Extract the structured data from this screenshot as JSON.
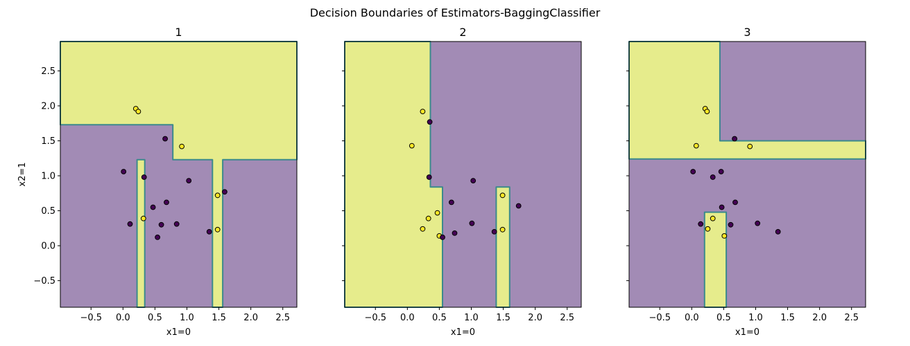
{
  "figure": {
    "suptitle": "Decision Boundaries of Estimators-BaggingClassifier"
  },
  "colors": {
    "class0_region": "#a28bb5",
    "class1_region": "#e6ec8c",
    "boundary_line": "#3b8a8c",
    "class0_point": "#440154",
    "class1_point": "#fde725",
    "point_edge": "#000000"
  },
  "chart_data": [
    {
      "type": "scatter",
      "title": "1",
      "xlabel": "x1=0",
      "ylabel": "x2=1",
      "xlim": [
        -0.98,
        2.72
      ],
      "ylim": [
        -0.88,
        2.92
      ],
      "xticks": [
        -0.5,
        0.0,
        0.5,
        1.0,
        1.5,
        2.0,
        2.5
      ],
      "xtick_labels": [
        "−0.5",
        "0.0",
        "0.5",
        "1.0",
        "1.5",
        "2.0",
        "2.5"
      ],
      "yticks": [
        -0.5,
        0.0,
        0.5,
        1.0,
        1.5,
        2.0,
        2.5
      ],
      "ytick_labels": [
        "−0.5",
        "0.0",
        "0.5",
        "1.0",
        "1.5",
        "2.0",
        "2.5"
      ],
      "show_ytick_labels": true,
      "background_class": 0,
      "regions": [
        {
          "class": 1,
          "polygon": [
            [
              -0.98,
              1.73
            ],
            [
              0.78,
              1.73
            ],
            [
              0.78,
              1.23
            ],
            [
              1.4,
              1.23
            ],
            [
              1.4,
              -0.88
            ],
            [
              1.56,
              -0.88
            ],
            [
              1.56,
              1.23
            ],
            [
              2.72,
              1.23
            ],
            [
              2.72,
              2.92
            ],
            [
              -0.98,
              2.92
            ]
          ]
        },
        {
          "class": 1,
          "polygon": [
            [
              0.22,
              -0.88
            ],
            [
              0.34,
              -0.88
            ],
            [
              0.34,
              1.23
            ],
            [
              0.22,
              1.23
            ]
          ]
        }
      ],
      "points": [
        {
          "x": 0.2,
          "y": 1.96,
          "class": 1
        },
        {
          "x": 0.24,
          "y": 1.92,
          "class": 1
        },
        {
          "x": 0.92,
          "y": 1.42,
          "class": 1
        },
        {
          "x": 0.32,
          "y": 0.39,
          "class": 1
        },
        {
          "x": 1.48,
          "y": 0.72,
          "class": 1
        },
        {
          "x": 1.48,
          "y": 0.23,
          "class": 1
        },
        {
          "x": 0.66,
          "y": 1.53,
          "class": 0
        },
        {
          "x": 0.01,
          "y": 1.06,
          "class": 0
        },
        {
          "x": 0.33,
          "y": 0.98,
          "class": 0
        },
        {
          "x": 1.03,
          "y": 0.93,
          "class": 0
        },
        {
          "x": 1.59,
          "y": 0.77,
          "class": 0
        },
        {
          "x": 0.68,
          "y": 0.62,
          "class": 0
        },
        {
          "x": 0.47,
          "y": 0.55,
          "class": 0
        },
        {
          "x": 0.11,
          "y": 0.31,
          "class": 0
        },
        {
          "x": 0.6,
          "y": 0.3,
          "class": 0
        },
        {
          "x": 0.84,
          "y": 0.31,
          "class": 0
        },
        {
          "x": 1.35,
          "y": 0.2,
          "class": 0
        },
        {
          "x": 0.54,
          "y": 0.12,
          "class": 0
        }
      ]
    },
    {
      "type": "scatter",
      "title": "2",
      "xlabel": "x1=0",
      "ylabel": "",
      "xlim": [
        -0.98,
        2.72
      ],
      "ylim": [
        -0.88,
        2.92
      ],
      "xticks": [
        -0.5,
        0.0,
        0.5,
        1.0,
        1.5,
        2.0,
        2.5
      ],
      "xtick_labels": [
        "−0.5",
        "0.0",
        "0.5",
        "1.0",
        "1.5",
        "2.0",
        "2.5"
      ],
      "yticks": [
        -0.5,
        0.0,
        0.5,
        1.0,
        1.5,
        2.0,
        2.5
      ],
      "ytick_labels": [
        "−0.5",
        "0.0",
        "0.5",
        "1.0",
        "1.5",
        "2.0",
        "2.5"
      ],
      "show_ytick_labels": false,
      "background_class": 0,
      "regions": [
        {
          "class": 1,
          "polygon": [
            [
              -0.98,
              -0.88
            ],
            [
              0.55,
              -0.88
            ],
            [
              0.55,
              0.84
            ],
            [
              0.36,
              0.84
            ],
            [
              0.36,
              2.92
            ],
            [
              -0.98,
              2.92
            ]
          ]
        },
        {
          "class": 1,
          "polygon": [
            [
              1.39,
              -0.88
            ],
            [
              1.6,
              -0.88
            ],
            [
              1.6,
              0.84
            ],
            [
              1.39,
              0.84
            ]
          ]
        }
      ],
      "points": [
        {
          "x": 0.24,
          "y": 1.92,
          "class": 1
        },
        {
          "x": 0.07,
          "y": 1.43,
          "class": 1
        },
        {
          "x": 0.47,
          "y": 0.47,
          "class": 1
        },
        {
          "x": 0.33,
          "y": 0.39,
          "class": 1
        },
        {
          "x": 0.24,
          "y": 0.24,
          "class": 1
        },
        {
          "x": 0.5,
          "y": 0.14,
          "class": 1
        },
        {
          "x": 1.49,
          "y": 0.72,
          "class": 1
        },
        {
          "x": 1.49,
          "y": 0.23,
          "class": 1
        },
        {
          "x": 0.35,
          "y": 1.77,
          "class": 0
        },
        {
          "x": 0.34,
          "y": 0.98,
          "class": 0
        },
        {
          "x": 1.03,
          "y": 0.93,
          "class": 0
        },
        {
          "x": 0.69,
          "y": 0.62,
          "class": 0
        },
        {
          "x": 1.74,
          "y": 0.57,
          "class": 0
        },
        {
          "x": 1.01,
          "y": 0.32,
          "class": 0
        },
        {
          "x": 0.74,
          "y": 0.18,
          "class": 0
        },
        {
          "x": 1.36,
          "y": 0.2,
          "class": 0
        },
        {
          "x": 0.55,
          "y": 0.12,
          "class": 0
        }
      ]
    },
    {
      "type": "scatter",
      "title": "3",
      "xlabel": "x1=0",
      "ylabel": "",
      "xlim": [
        -0.98,
        2.72
      ],
      "ylim": [
        -0.88,
        2.92
      ],
      "xticks": [
        -0.5,
        0.0,
        0.5,
        1.0,
        1.5,
        2.0,
        2.5
      ],
      "xtick_labels": [
        "−0.5",
        "0.0",
        "0.5",
        "1.0",
        "1.5",
        "2.0",
        "2.5"
      ],
      "yticks": [
        -0.5,
        0.0,
        0.5,
        1.0,
        1.5,
        2.0,
        2.5
      ],
      "ytick_labels": [
        "−0.5",
        "0.0",
        "0.5",
        "1.0",
        "1.5",
        "2.0",
        "2.5"
      ],
      "show_ytick_labels": false,
      "background_class": 0,
      "regions": [
        {
          "class": 1,
          "polygon": [
            [
              -0.98,
              1.24
            ],
            [
              2.72,
              1.24
            ],
            [
              2.72,
              1.5
            ],
            [
              0.44,
              1.5
            ],
            [
              0.44,
              2.92
            ],
            [
              -0.98,
              2.92
            ]
          ]
        },
        {
          "class": 1,
          "polygon": [
            [
              0.2,
              -0.88
            ],
            [
              0.54,
              -0.88
            ],
            [
              0.54,
              0.48
            ],
            [
              0.2,
              0.48
            ]
          ]
        }
      ],
      "points": [
        {
          "x": 0.21,
          "y": 1.96,
          "class": 1
        },
        {
          "x": 0.24,
          "y": 1.92,
          "class": 1
        },
        {
          "x": 0.07,
          "y": 1.43,
          "class": 1
        },
        {
          "x": 0.91,
          "y": 1.42,
          "class": 1
        },
        {
          "x": 0.33,
          "y": 0.39,
          "class": 1
        },
        {
          "x": 0.25,
          "y": 0.24,
          "class": 1
        },
        {
          "x": 0.51,
          "y": 0.14,
          "class": 1
        },
        {
          "x": 0.67,
          "y": 1.53,
          "class": 0
        },
        {
          "x": 0.02,
          "y": 1.06,
          "class": 0
        },
        {
          "x": 0.46,
          "y": 1.06,
          "class": 0
        },
        {
          "x": 0.33,
          "y": 0.98,
          "class": 0
        },
        {
          "x": 0.68,
          "y": 0.62,
          "class": 0
        },
        {
          "x": 0.47,
          "y": 0.55,
          "class": 0
        },
        {
          "x": 0.14,
          "y": 0.31,
          "class": 0
        },
        {
          "x": 0.61,
          "y": 0.3,
          "class": 0
        },
        {
          "x": 1.03,
          "y": 0.32,
          "class": 0
        },
        {
          "x": 1.35,
          "y": 0.2,
          "class": 0
        }
      ]
    }
  ]
}
